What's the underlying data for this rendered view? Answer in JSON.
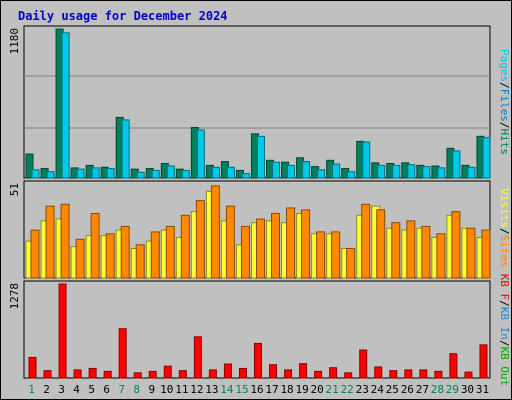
{
  "title": "Daily usage for December 2024",
  "colors": {
    "background": "#c0c0c0",
    "plot_background": "#c0c0c0",
    "title": "#0000cc",
    "hits": "#00805c",
    "files": "#0080c0",
    "pages": "#00c8e8",
    "visits": "#ffff33",
    "sites": "#ff8800",
    "kb_in": "#2288cc",
    "kb_out": "#00aa00",
    "kbf": "#ff0000",
    "weekend_day": "#00805c"
  },
  "chart_data": [
    {
      "type": "bar",
      "panel": "hits-files-pages",
      "title": "Daily usage for December 2024",
      "categories": [
        "1",
        "2",
        "3",
        "4",
        "5",
        "6",
        "7",
        "8",
        "9",
        "10",
        "11",
        "12",
        "13",
        "14",
        "15",
        "16",
        "17",
        "18",
        "19",
        "20",
        "21",
        "22",
        "23",
        "24",
        "25",
        "26",
        "27",
        "28",
        "29",
        "30",
        "31"
      ],
      "ylabel_max": "1180",
      "ylim": [
        0,
        1180
      ],
      "grid": true,
      "series": [
        {
          "name": "Hits",
          "values": [
            190,
            75,
            1180,
            80,
            100,
            85,
            480,
            70,
            75,
            115,
            70,
            400,
            100,
            130,
            60,
            350,
            140,
            125,
            160,
            90,
            140,
            75,
            290,
            120,
            115,
            120,
            100,
            95,
            235,
            100,
            330
          ]
        },
        {
          "name": "Files",
          "values": [
            0,
            0,
            0,
            0,
            0,
            0,
            0,
            0,
            0,
            0,
            0,
            0,
            0,
            0,
            0,
            0,
            0,
            0,
            0,
            0,
            0,
            0,
            0,
            0,
            0,
            0,
            0,
            0,
            0,
            0,
            0
          ]
        },
        {
          "name": "Pages",
          "values": [
            65,
            50,
            1150,
            70,
            80,
            75,
            460,
            45,
            60,
            95,
            60,
            380,
            85,
            85,
            35,
            330,
            125,
            100,
            130,
            65,
            110,
            50,
            285,
            100,
            100,
            105,
            90,
            80,
            215,
            85,
            320
          ]
        }
      ],
      "legend": [
        "Pages",
        "Files",
        "Hits"
      ]
    },
    {
      "type": "bar",
      "panel": "visits-sites",
      "categories": [
        "1",
        "2",
        "3",
        "4",
        "5",
        "6",
        "7",
        "8",
        "9",
        "10",
        "11",
        "12",
        "13",
        "14",
        "15",
        "16",
        "17",
        "18",
        "19",
        "20",
        "21",
        "22",
        "23",
        "24",
        "25",
        "26",
        "27",
        "28",
        "29",
        "30",
        "31"
      ],
      "ylabel_max": "51",
      "ylim": [
        0,
        51
      ],
      "series": [
        {
          "name": "Visits",
          "values": [
            20,
            31,
            32,
            17,
            23,
            23,
            26,
            16,
            20,
            26,
            22,
            36,
            47,
            31,
            18,
            30,
            31,
            30,
            35,
            24,
            24,
            16,
            34,
            39,
            27,
            26,
            27,
            22,
            34,
            27,
            22
          ]
        },
        {
          "name": "Sites",
          "values": [
            26,
            39,
            40,
            21,
            35,
            24,
            28,
            18,
            25,
            28,
            34,
            42,
            50,
            39,
            28,
            32,
            35,
            38,
            37,
            25,
            25,
            16,
            40,
            37,
            30,
            31,
            28,
            24,
            36,
            27,
            26
          ]
        }
      ],
      "legend": [
        "Visits",
        "Sites"
      ]
    },
    {
      "type": "bar",
      "panel": "kbytes",
      "categories": [
        "1",
        "2",
        "3",
        "4",
        "5",
        "6",
        "7",
        "8",
        "9",
        "10",
        "11",
        "12",
        "13",
        "14",
        "15",
        "16",
        "17",
        "18",
        "19",
        "20",
        "21",
        "22",
        "23",
        "24",
        "25",
        "26",
        "27",
        "28",
        "29",
        "30",
        "31"
      ],
      "ylabel_max": "1278",
      "ylim": [
        0,
        1278
      ],
      "series": [
        {
          "name": "KB F",
          "values": [
            280,
            100,
            1278,
            110,
            130,
            90,
            670,
            70,
            90,
            160,
            100,
            560,
            110,
            190,
            130,
            470,
            180,
            110,
            195,
            90,
            140,
            70,
            380,
            150,
            100,
            110,
            110,
            90,
            330,
            80,
            450
          ]
        },
        {
          "name": "KB In",
          "values": [
            0,
            0,
            0,
            0,
            0,
            0,
            0,
            0,
            0,
            0,
            0,
            0,
            0,
            0,
            0,
            0,
            0,
            0,
            0,
            0,
            0,
            0,
            0,
            0,
            0,
            0,
            0,
            0,
            0,
            0,
            0
          ]
        },
        {
          "name": "KB Out",
          "values": [
            0,
            0,
            0,
            0,
            0,
            0,
            0,
            0,
            0,
            0,
            0,
            0,
            0,
            0,
            0,
            0,
            0,
            0,
            0,
            0,
            0,
            0,
            0,
            0,
            0,
            0,
            0,
            0,
            0,
            0,
            0
          ]
        }
      ],
      "legend": [
        "KB F",
        "KB In",
        "KB Out"
      ]
    }
  ],
  "weekend_days": [
    "1",
    "7",
    "8",
    "14",
    "15",
    "21",
    "22",
    "28",
    "29"
  ],
  "legend_labels": {
    "top": [
      {
        "text": "Pages",
        "color": "#00c8e8"
      },
      {
        "text": "/",
        "color": "#000000"
      },
      {
        "text": "Files",
        "color": "#0080c0"
      },
      {
        "text": "/",
        "color": "#000000"
      },
      {
        "text": "Hits",
        "color": "#00805c"
      }
    ],
    "middle": [
      {
        "text": "Visits",
        "color": "#ffff33"
      },
      {
        "text": "/",
        "color": "#000000"
      },
      {
        "text": "Sites",
        "color": "#ff8800"
      }
    ],
    "bottom": [
      {
        "text": "KB F",
        "color": "#ff0000"
      },
      {
        "text": "/",
        "color": "#000000"
      },
      {
        "text": "KB In",
        "color": "#2288cc"
      },
      {
        "text": "/",
        "color": "#000000"
      },
      {
        "text": "KB Out",
        "color": "#00aa00"
      }
    ]
  }
}
